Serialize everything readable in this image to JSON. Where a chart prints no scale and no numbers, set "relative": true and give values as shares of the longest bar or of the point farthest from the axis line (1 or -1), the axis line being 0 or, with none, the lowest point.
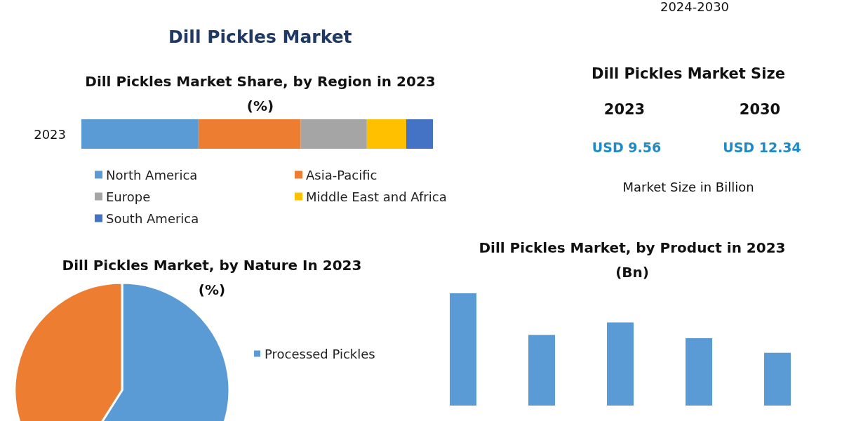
{
  "chart_data": [
    {
      "type": "bar",
      "title": "Dill Pickles Market Share, by Region in 2023\n(%)",
      "annotations": [
        "Dill Pickles Market"
      ],
      "orientation": "horizontal",
      "stacked": true,
      "relative": true,
      "categories": [
        "2023"
      ],
      "legend": "bottom",
      "series": [
        {
          "name": "North America",
          "color": "#5b9bd5",
          "values": [
            0.333
          ]
        },
        {
          "name": "Asia-Pacific",
          "color": "#ed7d31",
          "values": [
            0.291
          ]
        },
        {
          "name": "Europe",
          "color": "#a5a5a5",
          "values": [
            0.188
          ]
        },
        {
          "name": "Middle East and Africa",
          "color": "#ffc000",
          "values": [
            0.112
          ]
        },
        {
          "name": "South America",
          "color": "#4472c4",
          "values": [
            0.076
          ]
        }
      ]
    },
    {
      "type": "pie",
      "title": "Dill Pickles Market, by Nature In 2023\n(%)",
      "categories": [
        "Processed Pickles",
        null
      ],
      "values": [
        59,
        41
      ],
      "colors": [
        "#5b9bd5",
        "#ed7d31"
      ],
      "legend": "right"
    },
    {
      "type": "bar",
      "title": "Dill Pickles Market, by Product in 2023\n(Bn)",
      "relative": true,
      "categories": [
        null,
        null,
        null,
        null,
        null
      ],
      "values": [
        1,
        0.63,
        0.74,
        0.6,
        0.47
      ],
      "color": "#5b9bd5"
    },
    {
      "type": "other",
      "title": "Dill Pickles Market Size",
      "categories": [
        "2023",
        "2030"
      ],
      "value_labels": [
        "USD 9.56",
        "USD 12.34"
      ],
      "color": "#1f8ac8",
      "annotations": [
        "Market Size in Billion",
        "2024-2030"
      ]
    }
  ]
}
